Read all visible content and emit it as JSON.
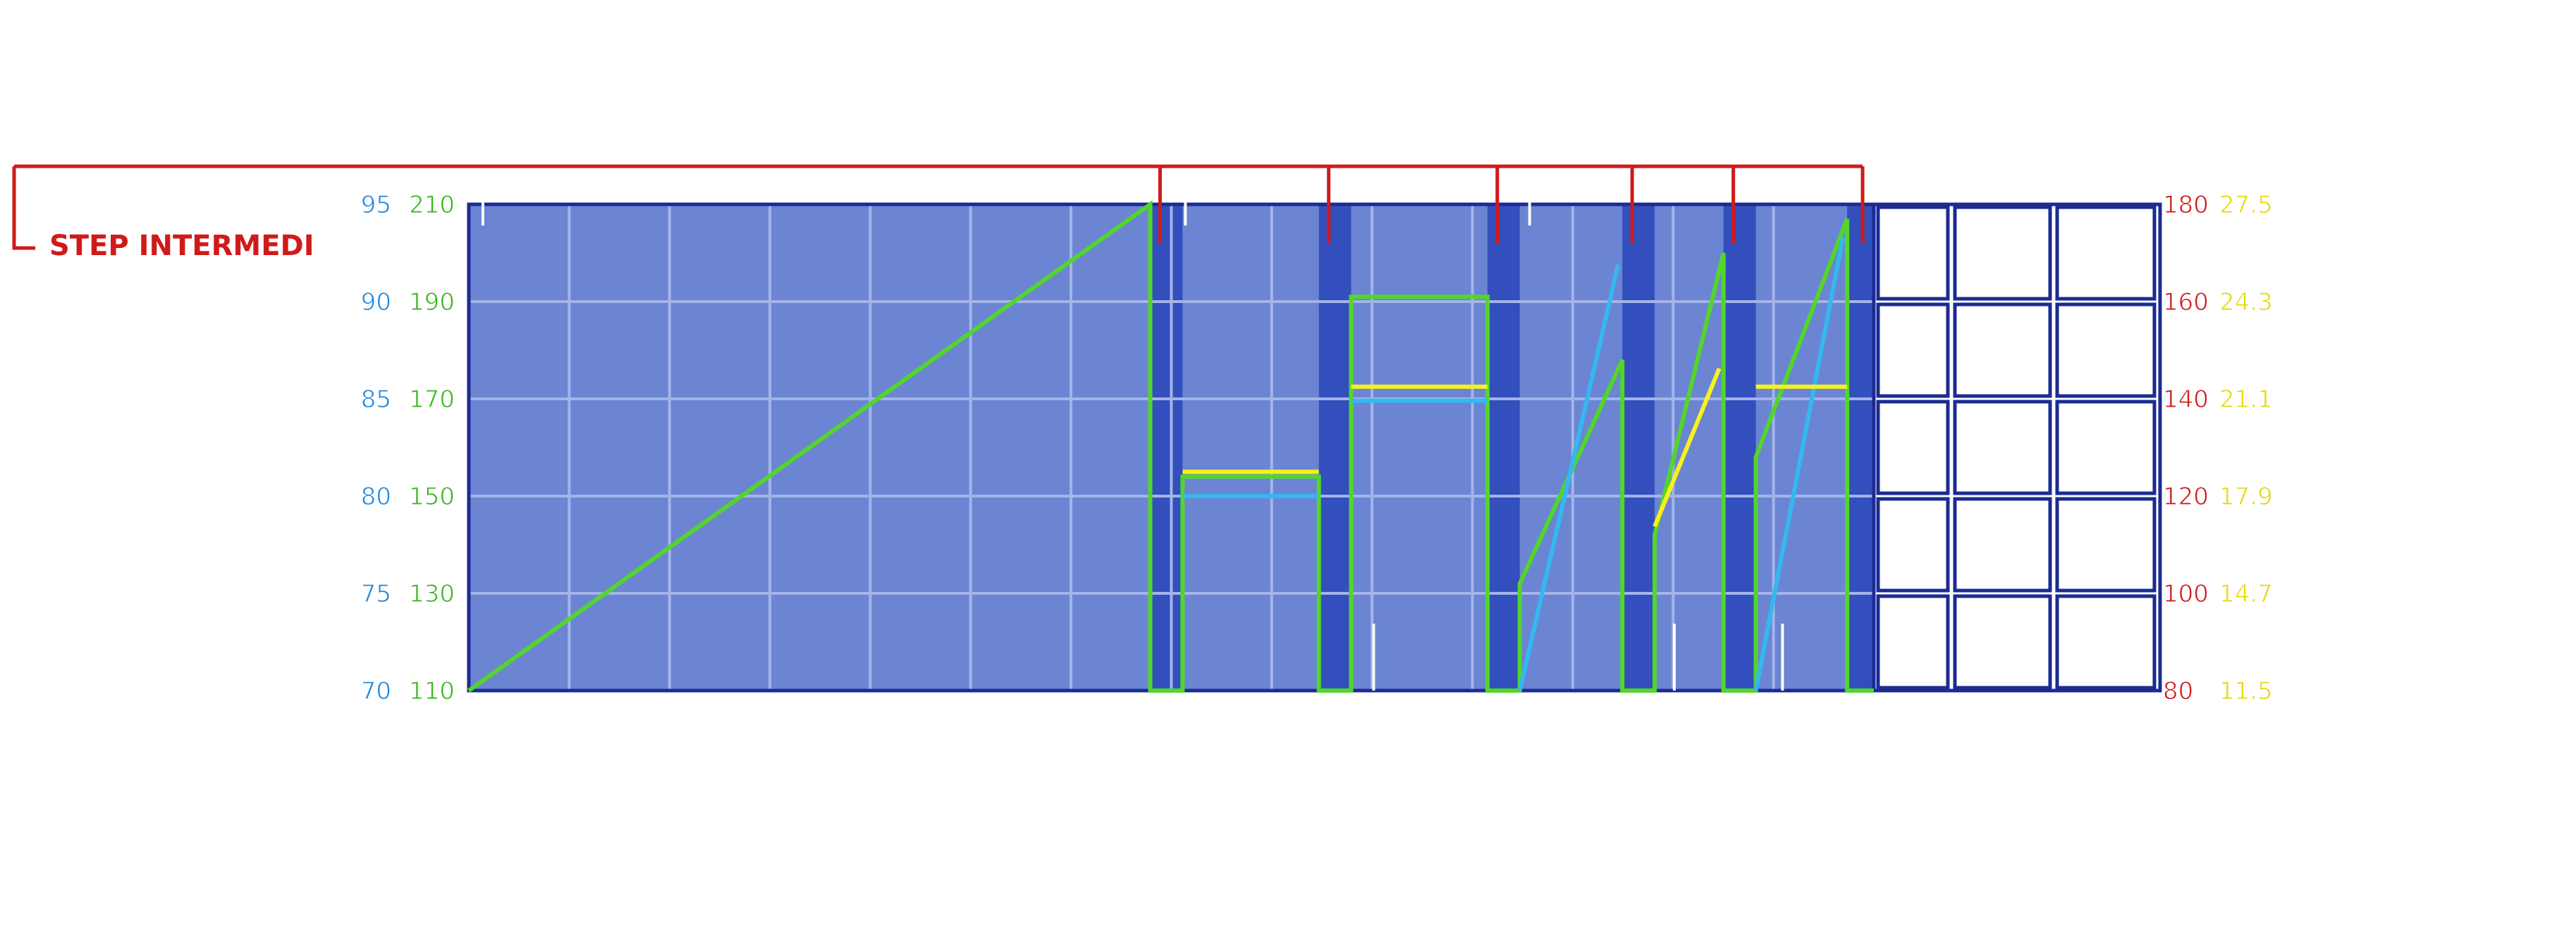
{
  "colors": {
    "background": "#ffffff",
    "plot_fill": "#6b85d3",
    "plot_border": "#1b2b93",
    "band_fill": "#334fbd",
    "grid": "#a4b4ea",
    "empty_cell_border": "#1b2b93",
    "marker": "#d01a1a",
    "green": "#52d62a",
    "cyan": "#34b8f0",
    "yellow": "#f7f21a",
    "tick_white": "#ffffff",
    "axis_blue": "#1a86e3",
    "axis_green": "#37b61b",
    "axis_red": "#d01a1a",
    "axis_yellow": "#e6d800"
  },
  "step_label": "STEP INTERMEDI",
  "chart_data": {
    "type": "line",
    "title": "",
    "x_range": [
      0,
      100
    ],
    "grid": true,
    "axes": {
      "left_outer": {
        "color": "blue",
        "ticks": [
          "95",
          "90",
          "85",
          "80",
          "75",
          "70"
        ],
        "range": [
          70,
          95
        ]
      },
      "left_inner": {
        "color": "green",
        "ticks": [
          "210",
          "190",
          "170",
          "150",
          "130",
          "110"
        ],
        "range": [
          110,
          210
        ]
      },
      "right_inner": {
        "color": "red",
        "ticks": [
          "180",
          "160",
          "140",
          "120",
          "100",
          "80"
        ],
        "range": [
          80,
          180
        ]
      },
      "right_outer": {
        "color": "yellow",
        "ticks": [
          "27.5",
          "24.3",
          "21.1",
          "17.9",
          "14.7",
          "11.5"
        ],
        "range": [
          11.5,
          27.5
        ]
      }
    },
    "bands": [
      [
        48.5,
        50.8
      ],
      [
        60.5,
        62.8
      ],
      [
        72.5,
        74.8
      ],
      [
        82.1,
        84.4
      ],
      [
        89.3,
        91.6
      ],
      [
        98.1,
        100
      ]
    ],
    "step_markers_x": [
      49.2,
      61.2,
      73.2,
      82.8,
      90.0,
      99.2
    ],
    "white_ticks": {
      "top": [
        1.0,
        51.0,
        75.5
      ],
      "bottom": [
        64.4,
        85.8,
        93.5
      ]
    },
    "series": [
      {
        "color": "green",
        "axis": "left_inner",
        "points": [
          [
            0,
            110
          ],
          [
            48.5,
            210
          ],
          [
            48.5,
            110
          ],
          [
            50.8,
            110
          ],
          [
            50.8,
            154
          ],
          [
            60.5,
            154
          ],
          [
            60.5,
            110
          ],
          [
            62.8,
            110
          ],
          [
            62.8,
            191
          ],
          [
            72.5,
            191
          ],
          [
            72.5,
            110
          ],
          [
            74.8,
            110
          ],
          [
            74.8,
            132
          ],
          [
            82.1,
            178
          ],
          [
            82.1,
            110
          ],
          [
            84.4,
            110
          ],
          [
            84.4,
            142
          ],
          [
            89.3,
            200
          ],
          [
            89.3,
            110
          ],
          [
            91.6,
            110
          ],
          [
            91.6,
            158
          ],
          [
            98.1,
            207
          ],
          [
            98.1,
            110
          ],
          [
            100,
            110
          ]
        ]
      },
      {
        "color": "cyan",
        "axis": "left_outer",
        "segments": [
          [
            [
              50.8,
              80.0
            ],
            [
              60.5,
              80.0
            ]
          ],
          [
            [
              62.8,
              84.9
            ],
            [
              72.5,
              84.9
            ]
          ],
          [
            [
              74.8,
              70.0
            ],
            [
              81.8,
              91.9
            ]
          ],
          [
            [
              91.6,
              70.0
            ],
            [
              97.8,
              93.3
            ]
          ]
        ]
      },
      {
        "color": "yellow",
        "axis": "right_outer",
        "segments": [
          [
            [
              50.8,
              18.7
            ],
            [
              60.5,
              18.7
            ]
          ],
          [
            [
              62.8,
              21.5
            ],
            [
              72.5,
              21.5
            ]
          ],
          [
            [
              84.4,
              16.9
            ],
            [
              89.0,
              22.1
            ]
          ],
          [
            [
              91.6,
              21.5
            ],
            [
              98.1,
              21.5
            ]
          ]
        ]
      }
    ]
  }
}
